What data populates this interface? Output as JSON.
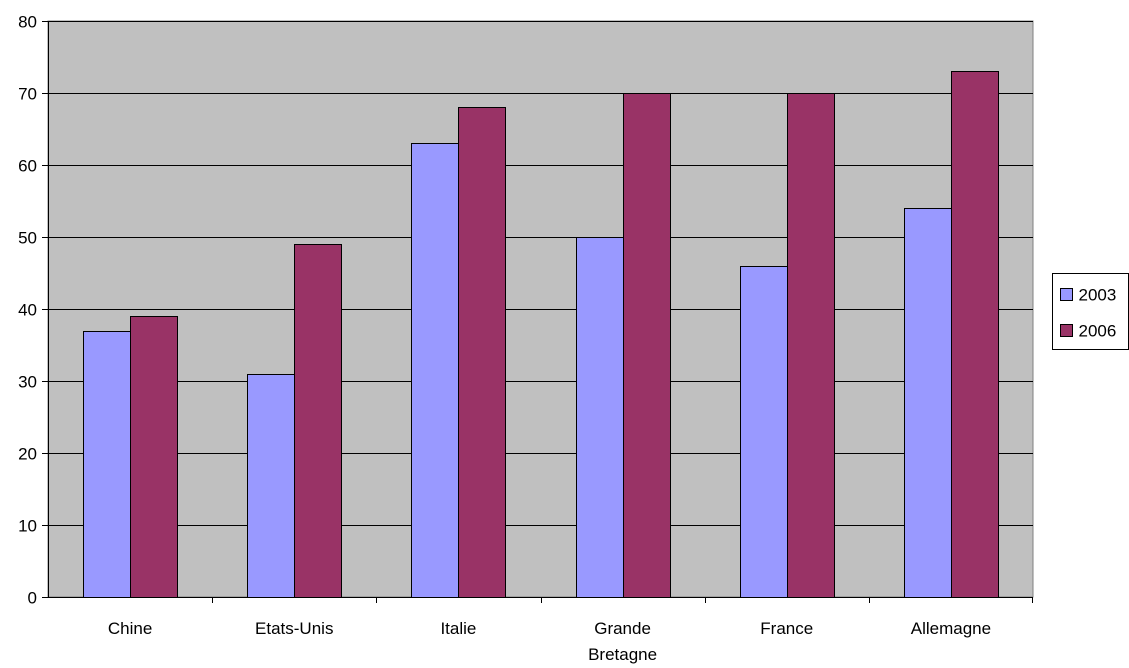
{
  "chart_data": {
    "type": "bar",
    "categories": [
      [
        "Chine"
      ],
      [
        "Etats-Unis"
      ],
      [
        "Italie"
      ],
      [
        "Grande",
        "Bretagne"
      ],
      [
        "France"
      ],
      [
        "Allemagne"
      ]
    ],
    "series": [
      {
        "name": "2003",
        "values": [
          37,
          31,
          63,
          50,
          46,
          54
        ],
        "color": "#9999ff"
      },
      {
        "name": "2006",
        "values": [
          39,
          49,
          68,
          70,
          70,
          73
        ],
        "color": "#993366"
      }
    ],
    "ylim": [
      0,
      80
    ],
    "yticks": [
      "0",
      "10",
      "20",
      "30",
      "40",
      "50",
      "60",
      "70",
      "80"
    ],
    "grid": true,
    "plot_background": "#c0c0c0",
    "legend_position": "right",
    "title": "",
    "xlabel": "",
    "ylabel": ""
  }
}
